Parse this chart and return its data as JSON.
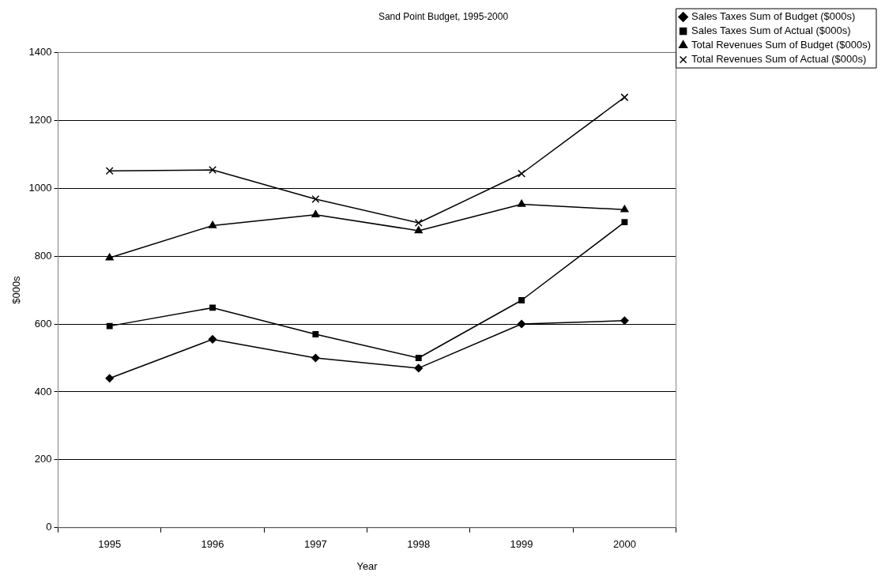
{
  "chart_data": {
    "type": "line",
    "title": "Sand Point Budget, 1995-2000",
    "xlabel": "Year",
    "ylabel": "$000s",
    "categories": [
      "1995",
      "1996",
      "1997",
      "1998",
      "1999",
      "2000"
    ],
    "series": [
      {
        "name": "Sales Taxes Sum of Budget ($000s)",
        "color": "#000000",
        "marker": "diamond",
        "values": [
          440,
          555,
          500,
          470,
          600,
          610
        ]
      },
      {
        "name": "Sales Taxes Sum of Actual ($000s)",
        "color": "#000000",
        "marker": "square",
        "values": [
          594,
          648,
          570,
          500,
          670,
          900
        ]
      },
      {
        "name": "Total Revenues Sum of Budget ($000s)",
        "color": "#000000",
        "marker": "triangle",
        "values": [
          795,
          890,
          922,
          875,
          953,
          937
        ]
      },
      {
        "name": "Total Revenues Sum of Actual ($000s)",
        "color": "#000000",
        "marker": "cross",
        "values": [
          1051,
          1054,
          968,
          898,
          1043,
          1268
        ]
      }
    ],
    "ylim": [
      0,
      1400
    ],
    "yticks": [
      0,
      200,
      400,
      600,
      800,
      1000,
      1200,
      1400
    ],
    "grid": "y",
    "legend": "top right",
    "line_style": "solid"
  }
}
